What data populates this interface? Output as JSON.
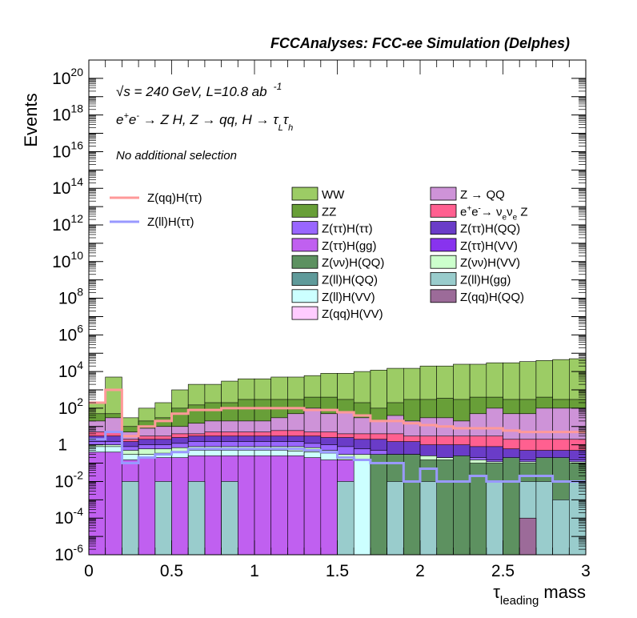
{
  "header": "FCCAnalyses: FCC-ee Simulation (Delphes)",
  "annotations": {
    "energy": "√s = 240 GeV, L=10.8 ab",
    "energy_exp": "-1",
    "process": "e⁺e⁻ → Z H, Z → qq, H → τ_L τ_h",
    "selection": "No additional selection"
  },
  "chart_data": {
    "type": "bar",
    "stacked": true,
    "xlabel": "τ_leading mass",
    "ylabel": "Events",
    "xlim": [
      0,
      3
    ],
    "ylim": [
      1e-06,
      1e+21
    ],
    "yscale": "log",
    "bin_width": 0.1,
    "x_ticks": [
      "0",
      "0.5",
      "1",
      "1.5",
      "2",
      "2.5",
      "3"
    ],
    "y_ticks": [
      {
        "base": "10",
        "exp": "-6",
        "value": 1e-06
      },
      {
        "base": "10",
        "exp": "-4",
        "value": 0.0001
      },
      {
        "base": "10",
        "exp": "-2",
        "value": 0.01
      },
      {
        "base": "1",
        "exp": "",
        "value": 1
      },
      {
        "base": "10",
        "exp": "2",
        "value": 100.0
      },
      {
        "base": "10",
        "exp": "4",
        "value": 10000.0
      },
      {
        "base": "10",
        "exp": "6",
        "value": 1000000.0
      },
      {
        "base": "10",
        "exp": "8",
        "value": 100000000.0
      },
      {
        "base": "10",
        "exp": "10",
        "value": 10000000000.0
      },
      {
        "base": "10",
        "exp": "12",
        "value": 1000000000000.0
      },
      {
        "base": "10",
        "exp": "14",
        "value": 100000000000000.0
      },
      {
        "base": "10",
        "exp": "16",
        "value": 1e+16
      },
      {
        "base": "10",
        "exp": "18",
        "value": 1e+18
      },
      {
        "base": "10",
        "exp": "20",
        "value": 1e+20
      }
    ],
    "stack_top_to_bottom": [
      {
        "name": "WW",
        "color": "#9ccc65",
        "cum": [
          200,
          5000,
          30,
          100,
          200,
          1000,
          2000,
          2000,
          3000,
          4000,
          4000,
          5000,
          5000,
          6000,
          8000,
          8000,
          10000,
          12000,
          15000,
          15000,
          20000,
          20000,
          25000,
          25000,
          30000,
          30000,
          35000,
          40000,
          45000,
          50000
        ]
      },
      {
        "name": "ZZ",
        "color": "#689f38",
        "cum": [
          50,
          50,
          10,
          20,
          30,
          100,
          150,
          200,
          200,
          300,
          300,
          300,
          300,
          400,
          400,
          300,
          200,
          100,
          200,
          300,
          300,
          350,
          300,
          400,
          400,
          300,
          300,
          400,
          300,
          300
        ]
      },
      {
        "name": "Z → QQ",
        "color": "#ce93d8",
        "cum": [
          20,
          30,
          5,
          8,
          10,
          10,
          15,
          20,
          20,
          20,
          20,
          30,
          50,
          100,
          50,
          60,
          30,
          20,
          40,
          20,
          30,
          30,
          20,
          50,
          100,
          50,
          50,
          100,
          100,
          100
        ]
      },
      {
        "name": "e⁺e⁻→ ν_e ν_e Z",
        "color": "#ff6090",
        "cum": [
          5,
          5,
          2,
          3,
          3,
          4,
          4,
          5,
          5,
          5,
          5,
          6,
          6,
          5,
          5,
          4,
          4,
          4,
          4,
          3,
          3,
          3,
          3,
          3,
          3,
          2,
          2,
          2,
          2,
          2
        ]
      },
      {
        "name": "Z(ττ)H(QQ)",
        "color": "#6a3cc8",
        "cum": [
          3,
          3,
          1.5,
          2,
          2,
          2.5,
          3,
          3,
          3,
          3,
          3,
          3,
          3,
          3,
          2.5,
          2.5,
          2,
          2,
          1.5,
          1.5,
          1,
          1,
          1,
          0.8,
          0.8,
          0.6,
          0.5,
          0.5,
          0.5,
          0.5
        ]
      },
      {
        "name": "Z(ττ)H(ττ)",
        "color": "#9966ff",
        "cum": [
          1.5,
          1.5,
          0.8,
          1,
          1,
          1.2,
          1.5,
          1.5,
          1.5,
          1.5,
          1.5,
          1.5,
          1.5,
          1.2,
          1,
          0.8,
          0.6,
          0.5,
          0.3,
          0.3,
          0.2,
          0.2,
          0.2,
          0.2,
          0.15,
          0.15,
          0.15,
          0.15,
          0.15,
          0.15
        ]
      },
      {
        "name": "Z(νν)H(VV)",
        "color": "#ccffcc",
        "cum": [
          1,
          1,
          0.5,
          0.6,
          0.6,
          0.7,
          0.8,
          0.8,
          0.8,
          0.8,
          0.8,
          0.8,
          0.8,
          0.7,
          0.5,
          0.3,
          0.3,
          0.25,
          0.25,
          0.25,
          0.25,
          0.2,
          0.2,
          0.15,
          0.12,
          0.12,
          0.12,
          0.12,
          0.12,
          0.12
        ]
      },
      {
        "name": "Z(ll)H(VV)",
        "color": "#ccffff",
        "cum": [
          0.8,
          0.8,
          0.3,
          0.3,
          0.35,
          0.4,
          0.5,
          0.5,
          0.5,
          0.5,
          0.5,
          0.5,
          0.45,
          0.4,
          0.35,
          0.15,
          0.15,
          0.12,
          0.12,
          0.12,
          0.12,
          0.12,
          0.08,
          0.08,
          0.08,
          0.08,
          0.08,
          0.08,
          0.08,
          0.08
        ]
      },
      {
        "name": "Z(ττ)H(gg)",
        "color": "#c060f0",
        "cum": [
          0.4,
          0.4,
          0.15,
          0.2,
          0.2,
          0.2,
          0.25,
          0.25,
          0.25,
          0.25,
          0.25,
          0.25,
          0.25,
          0.2,
          0.15,
          0.15,
          0,
          0,
          0,
          0,
          0,
          0,
          0,
          0,
          0,
          0,
          0,
          0,
          0,
          0
        ]
      },
      {
        "name": "Z(νν)H(QQ)",
        "color": "#5d9160",
        "cum": [
          0,
          0,
          0,
          0,
          0,
          0,
          0,
          0,
          0,
          0,
          0,
          0,
          0,
          0,
          0,
          0,
          0,
          0.3,
          0.3,
          0.3,
          0.15,
          0.15,
          0.25,
          0.1,
          0.1,
          0.2,
          0.1,
          0.2,
          0.2,
          0.1
        ]
      },
      {
        "name": "Z(ll)H(gg)",
        "color": "#99cccc",
        "cum": [
          0,
          0,
          0.01,
          0,
          0.01,
          0,
          0.01,
          0,
          0.01,
          0,
          0,
          0,
          0,
          0,
          0,
          0.01,
          0,
          0,
          0.01,
          0,
          0.01,
          0,
          0,
          0,
          0.01,
          0,
          0.01,
          0.01,
          0.001,
          0.01
        ]
      },
      {
        "name": "Z(qq)H(QQ)",
        "color": "#9c6b99",
        "cum": [
          0,
          0,
          0,
          0,
          0,
          0,
          0,
          0,
          0,
          0,
          0,
          0,
          0,
          0,
          0,
          0,
          0,
          0,
          0,
          0,
          0,
          0,
          0,
          0,
          0,
          0,
          0.0001,
          0,
          0,
          0
        ]
      }
    ],
    "legend_left": [
      {
        "name": "Z(qq)H(ττ)",
        "color": "#ff9999"
      },
      {
        "name": "Z(ll)H(ττ)",
        "color": "#9999ff"
      }
    ],
    "legend_col1": [
      {
        "name": "WW",
        "color": "#9ccc65"
      },
      {
        "name": "ZZ",
        "color": "#689f38"
      },
      {
        "name": "Z(ττ)H(ττ)",
        "color": "#9966ff"
      },
      {
        "name": "Z(ττ)H(gg)",
        "color": "#c060f0"
      },
      {
        "name": "Z(νν)H(QQ)",
        "color": "#5d9160"
      },
      {
        "name": "Z(ll)H(QQ)",
        "color": "#5f9a9a"
      },
      {
        "name": "Z(ll)H(VV)",
        "color": "#ccffff"
      },
      {
        "name": "Z(qq)H(VV)",
        "color": "#ffccff"
      }
    ],
    "legend_col2": [
      {
        "name": "Z → QQ",
        "color": "#ce93d8"
      },
      {
        "name": "e⁺e⁻→ ν_e ν_e Z",
        "color": "#ff6090"
      },
      {
        "name": "Z(ττ)H(QQ)",
        "color": "#6a3cc8"
      },
      {
        "name": "Z(ττ)H(VV)",
        "color": "#8833ee"
      },
      {
        "name": "Z(νν)H(VV)",
        "color": "#ccffcc"
      },
      {
        "name": "Z(ll)H(gg)",
        "color": "#99cccc"
      },
      {
        "name": "Z(qq)H(QQ)",
        "color": "#9c6b99"
      }
    ],
    "signal_lines": [
      {
        "name": "Z(qq)H(ττ)",
        "color": "#ff9999",
        "values": [
          200,
          1000,
          3,
          10,
          20,
          50,
          80,
          80,
          100,
          100,
          100,
          100,
          100,
          80,
          80,
          60,
          40,
          20,
          20,
          15,
          12,
          10,
          8,
          8,
          8,
          6,
          5,
          5,
          5,
          5
        ]
      },
      {
        "name": "Z(ll)H(ττ)",
        "color": "#9999ff",
        "values": [
          2,
          5,
          0.1,
          0.2,
          0.3,
          0.4,
          0.6,
          0.6,
          0.6,
          0.6,
          0.6,
          0.6,
          0.6,
          0.5,
          0.4,
          0.2,
          0.15,
          0.1,
          0.1,
          0.01,
          0.05,
          0.01,
          0.01,
          0.02,
          0.01,
          0.01,
          0.02,
          0.02,
          0.01,
          0.01
        ]
      }
    ]
  }
}
